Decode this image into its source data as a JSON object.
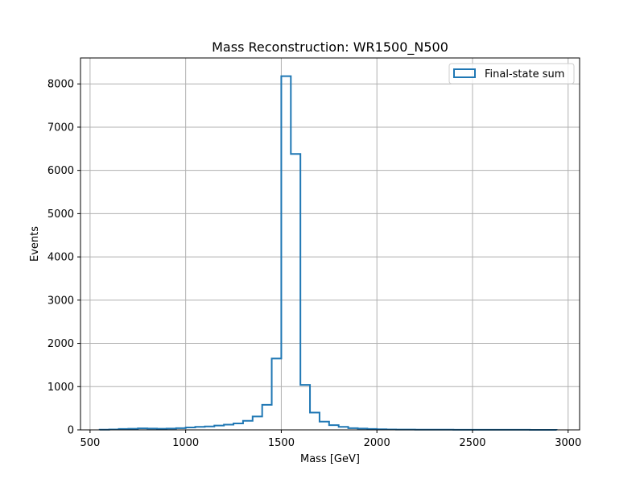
{
  "chart_data": {
    "type": "bar",
    "subtype": "step-histogram",
    "title": "Mass Reconstruction: WR1500_N500",
    "xlabel": "Mass [GeV]",
    "ylabel": "Events",
    "xlim": [
      450,
      3060
    ],
    "ylim": [
      0,
      8600
    ],
    "xticks": [
      500,
      1000,
      1500,
      2000,
      2500,
      3000
    ],
    "yticks": [
      0,
      1000,
      2000,
      3000,
      4000,
      5000,
      6000,
      7000,
      8000
    ],
    "grid": true,
    "legend_position": "top-right",
    "series": [
      {
        "name": "Final-state sum",
        "color": "#1f77b4",
        "bin_edges": [
          550,
          600,
          650,
          700,
          750,
          800,
          850,
          900,
          950,
          1000,
          1050,
          1100,
          1150,
          1200,
          1250,
          1300,
          1350,
          1400,
          1450,
          1500,
          1550,
          1600,
          1650,
          1700,
          1750,
          1800,
          1850,
          1900,
          1950,
          2000,
          2050,
          2100,
          2150,
          2200,
          2250,
          2300,
          2350,
          2400,
          2450,
          2500,
          2550,
          2600,
          2650,
          2700,
          2750,
          2800,
          2850,
          2900,
          2940
        ],
        "counts": [
          5,
          10,
          20,
          25,
          35,
          30,
          25,
          30,
          40,
          55,
          70,
          80,
          100,
          120,
          150,
          210,
          310,
          580,
          1650,
          8180,
          6380,
          1040,
          400,
          190,
          110,
          70,
          40,
          30,
          20,
          15,
          10,
          8,
          6,
          5,
          5,
          4,
          4,
          3,
          3,
          3,
          2,
          2,
          2,
          2,
          2,
          1,
          1,
          1
        ]
      }
    ]
  }
}
